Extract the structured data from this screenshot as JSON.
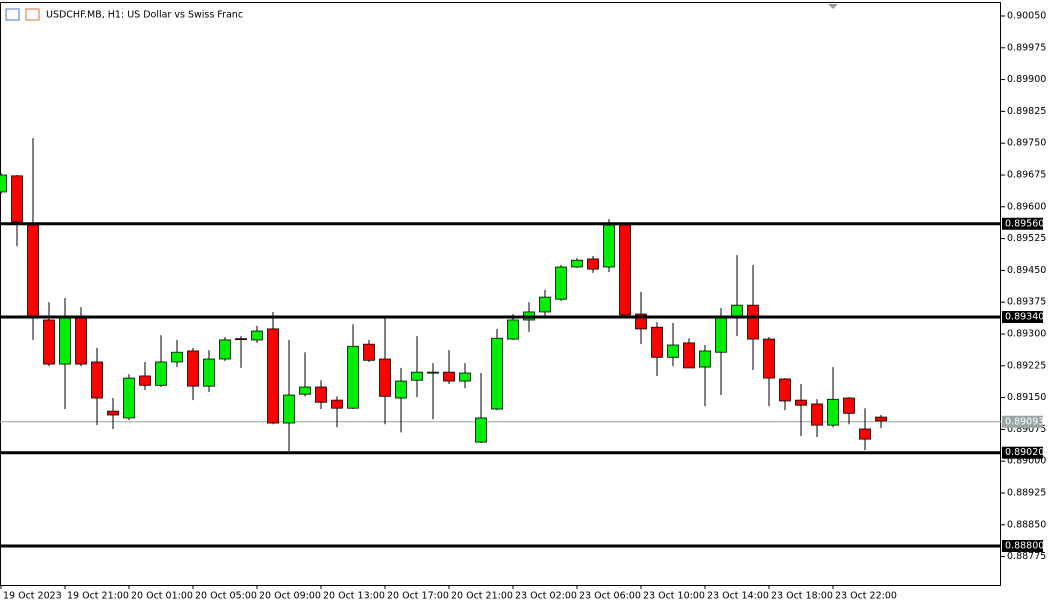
{
  "chart_data": {
    "type": "candlestick",
    "title": "USDCHF.MB, H1:  US Dollar vs Swiss Franc",
    "categories": [
      "19 Oct 2023",
      null,
      null,
      null,
      "19 Oct 21:00",
      null,
      null,
      null,
      "20 Oct 01:00",
      null,
      null,
      null,
      "20 Oct 05:00",
      null,
      null,
      null,
      "20 Oct 09:00",
      null,
      null,
      null,
      "20 Oct 13:00",
      null,
      null,
      null,
      "20 Oct 17:00",
      null,
      null,
      null,
      "20 Oct 21:00",
      null,
      null,
      null,
      "23 Oct 02:00",
      null,
      null,
      null,
      "23 Oct 06:00",
      null,
      null,
      null,
      "23 Oct 10:00",
      null,
      null,
      null,
      "23 Oct 14:00",
      null,
      null,
      null,
      "23 Oct 18:00",
      null,
      null,
      null,
      "23 Oct 22:00",
      null,
      null,
      null
    ],
    "open": [
      0.89635,
      0.89673,
      0.89557,
      0.89333,
      0.89229,
      0.89338,
      0.89234,
      0.89118,
      0.89102,
      0.89201,
      0.89179,
      0.89234,
      0.8926,
      0.89177,
      0.89241,
      0.89289,
      0.89286,
      0.89312,
      0.8909,
      0.89158,
      0.89175,
      0.89144,
      0.89125,
      0.89276,
      0.89241,
      0.89149,
      0.89191,
      0.8921,
      0.8921,
      0.89189,
      0.89045,
      0.89123,
      0.89288,
      0.89333,
      0.89352,
      0.89382,
      0.89458,
      0.89477,
      0.89458,
      0.89557,
      0.89347,
      0.89316,
      0.89245,
      0.89279,
      0.89222,
      0.89257,
      0.8934,
      0.89368,
      0.89288,
      0.89194,
      0.89144,
      0.89135,
      0.89085,
      0.89149,
      0.89076,
      0.89104
    ],
    "high": [
      0.8968,
      0.89675,
      0.89762,
      0.89375,
      0.89385,
      0.89363,
      0.89267,
      0.89149,
      0.89205,
      0.89234,
      0.89297,
      0.89286,
      0.89267,
      0.89262,
      0.89293,
      0.89295,
      0.89319,
      0.89352,
      0.89286,
      0.89257,
      0.89191,
      0.89153,
      0.89323,
      0.89286,
      0.8934,
      0.8922,
      0.89295,
      0.89231,
      0.89262,
      0.89231,
      0.89208,
      0.89312,
      0.89347,
      0.89375,
      0.89404,
      0.89463,
      0.89479,
      0.89484,
      0.89571,
      0.89562,
      0.89399,
      0.89328,
      0.89326,
      0.8929,
      0.89274,
      0.89361,
      0.89486,
      0.89463,
      0.89293,
      0.89196,
      0.89182,
      0.89146,
      0.89222,
      0.89151,
      0.89125,
      0.89109
    ],
    "low": [
      0.8963,
      0.89507,
      0.89286,
      0.89224,
      0.89123,
      0.89224,
      0.89085,
      0.89076,
      0.89097,
      0.89168,
      0.89175,
      0.89222,
      0.89144,
      0.89163,
      0.89236,
      0.8922,
      0.89279,
      0.89087,
      0.89024,
      0.89153,
      0.89123,
      0.8908,
      0.89123,
      0.89234,
      0.89087,
      0.89068,
      0.89151,
      0.89099,
      0.89182,
      0.89172,
      0.89043,
      0.8912,
      0.89286,
      0.89305,
      0.89342,
      0.89378,
      0.89456,
      0.89444,
      0.89446,
      0.89342,
      0.89276,
      0.89201,
      0.89224,
      0.8922,
      0.8913,
      0.89156,
      0.89295,
      0.89215,
      0.8913,
      0.8912,
      0.89059,
      0.89057,
      0.8908,
      0.89087,
      0.89026,
      0.89078
    ],
    "close": [
      0.89675,
      0.89564,
      0.89338,
      0.89229,
      0.8934,
      0.89229,
      0.89149,
      0.89109,
      0.89196,
      0.89179,
      0.89234,
      0.89257,
      0.89177,
      0.89241,
      0.89286,
      0.89288,
      0.89307,
      0.8909,
      0.89156,
      0.89175,
      0.89139,
      0.89125,
      0.89271,
      0.89238,
      0.89153,
      0.89189,
      0.8921,
      0.8921,
      0.89189,
      0.89208,
      0.89102,
      0.8929,
      0.89333,
      0.89352,
      0.89387,
      0.89458,
      0.89474,
      0.89453,
      0.89557,
      0.89345,
      0.89312,
      0.89245,
      0.89274,
      0.8922,
      0.8926,
      0.89342,
      0.89368,
      0.89288,
      0.89196,
      0.89142,
      0.89132,
      0.89085,
      0.89146,
      0.89113,
      0.89052,
      0.89095
    ],
    "up_color": "#00ee00",
    "down_color": "#ff0000",
    "ylim": [
      0.88708,
      0.90083
    ],
    "yticks": [
      {
        "value": 0.9005,
        "label": "0.90050"
      },
      {
        "value": 0.89975,
        "label": "0.89975"
      },
      {
        "value": 0.899,
        "label": "0.89900"
      },
      {
        "value": 0.89825,
        "label": "0.89825"
      },
      {
        "value": 0.8975,
        "label": "0.89750"
      },
      {
        "value": 0.89675,
        "label": "0.89675"
      },
      {
        "value": 0.896,
        "label": "0.89600"
      },
      {
        "value": 0.89525,
        "label": "0.89525"
      },
      {
        "value": 0.8945,
        "label": "0.89450"
      },
      {
        "value": 0.89375,
        "label": "0.89375"
      },
      {
        "value": 0.893,
        "label": "0.89300"
      },
      {
        "value": 0.89225,
        "label": "0.89225"
      },
      {
        "value": 0.8915,
        "label": "0.89150"
      },
      {
        "value": 0.89075,
        "label": "0.89075"
      },
      {
        "value": 0.89,
        "label": "0.89000"
      },
      {
        "value": 0.88925,
        "label": "0.88925"
      },
      {
        "value": 0.8885,
        "label": "0.88850"
      },
      {
        "value": 0.88775,
        "label": "0.88775"
      }
    ],
    "levels": [
      {
        "value": 0.8956,
        "label": "0.89560"
      },
      {
        "value": 0.8934,
        "label": "0.89340"
      },
      {
        "value": 0.8902,
        "label": "0.89020"
      },
      {
        "value": 0.888,
        "label": "0.88800"
      }
    ],
    "current_price": {
      "value": 0.89093,
      "label": "0.89093"
    }
  }
}
